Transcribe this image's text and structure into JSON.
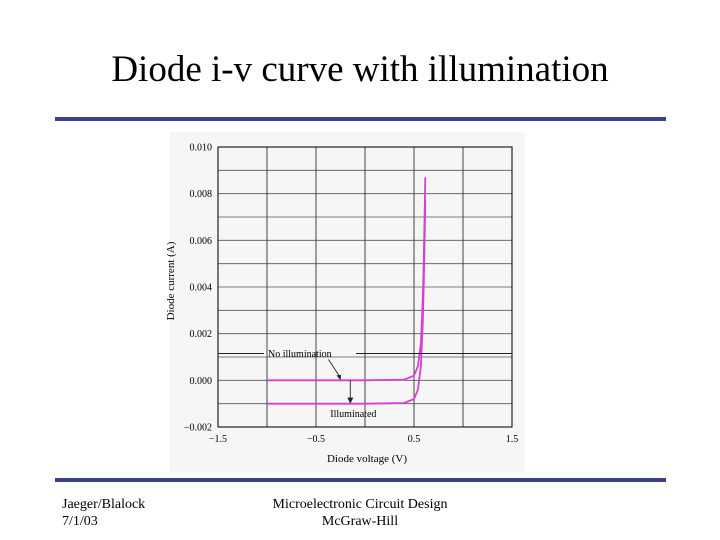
{
  "slide": {
    "title": "Diode i-v curve with illumination",
    "footer_left": [
      "Jaeger/Blalock",
      "7/1/03"
    ],
    "footer_center": [
      "Microelectronic Circuit Design",
      "McGraw-Hill"
    ],
    "rule_color": "#3b3f91"
  },
  "chart_data": {
    "type": "line",
    "title": "",
    "xlabel": "Diode voltage (V)",
    "ylabel": "Diode current (A)",
    "xlim": [
      -1.5,
      1.5
    ],
    "ylim": [
      -0.002,
      0.01
    ],
    "grid": true,
    "x_ticks": [
      -1.5,
      -1.0,
      -0.5,
      0.0,
      0.5,
      1.0,
      1.5
    ],
    "x_tick_labels": [
      "−1.5",
      "",
      "−0.5",
      "",
      "0.5",
      "",
      "1.5"
    ],
    "y_ticks": [
      -0.002,
      0.0,
      0.002,
      0.004,
      0.006,
      0.008,
      0.01
    ],
    "y_tick_labels": [
      "−0.002",
      "0.000",
      "0.002",
      "0.004",
      "0.006",
      "0.008",
      "0.010"
    ],
    "series_color": "#d63fd2",
    "series": [
      {
        "key": "dark",
        "x": [
          -1.0,
          -0.5,
          0.0,
          0.4,
          0.5,
          0.54,
          0.57,
          0.59,
          0.6,
          0.61,
          0.615
        ],
        "y": [
          0.0,
          0.0,
          0.0,
          3e-05,
          0.0002,
          0.0006,
          0.0016,
          0.0035,
          0.0052,
          0.0075,
          0.0087
        ]
      },
      {
        "key": "illuminated",
        "x": [
          -1.0,
          -0.5,
          0.0,
          0.4,
          0.5,
          0.54,
          0.57,
          0.59,
          0.6,
          0.61,
          0.615
        ],
        "y": [
          -0.001,
          -0.001,
          -0.001,
          -0.00097,
          -0.0008,
          -0.0004,
          0.0006,
          0.0025,
          0.0042,
          0.0065,
          0.0077
        ]
      }
    ],
    "annotations": [
      {
        "text": "No illumination",
        "target_series": "dark",
        "target_x": -0.25,
        "target_y": 0.0
      },
      {
        "text": "Illuminated",
        "target_series": "illuminated",
        "target_x": -0.15,
        "target_y": -0.001
      }
    ]
  }
}
